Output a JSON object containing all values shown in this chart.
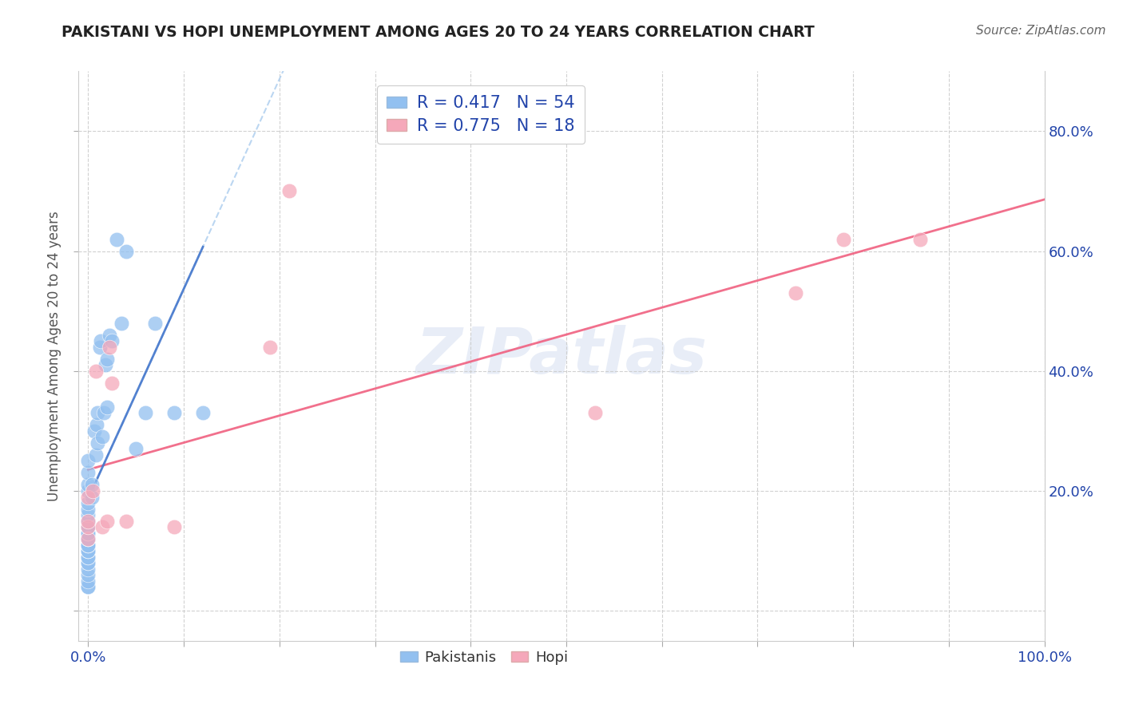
{
  "title": "PAKISTANI VS HOPI UNEMPLOYMENT AMONG AGES 20 TO 24 YEARS CORRELATION CHART",
  "source": "Source: ZipAtlas.com",
  "ylabel": "Unemployment Among Ages 20 to 24 years",
  "xlim": [
    -0.01,
    1.0
  ],
  "ylim": [
    -0.05,
    0.9
  ],
  "xticks": [
    0.0,
    0.1,
    0.2,
    0.3,
    0.4,
    0.5,
    0.6,
    0.7,
    0.8,
    0.9,
    1.0
  ],
  "yticks": [
    0.0,
    0.2,
    0.4,
    0.6,
    0.8
  ],
  "xtick_labels": [
    "0.0%",
    "",
    "",
    "",
    "",
    "",
    "",
    "",
    "",
    "",
    "100.0%"
  ],
  "ytick_labels": [
    "",
    "20.0%",
    "40.0%",
    "60.0%",
    "80.0%"
  ],
  "pakistani_color": "#92c0f0",
  "hopi_color": "#f5a8ba",
  "pakistani_line_color": "#4477cc",
  "pakistani_line_dash_color": "#aaccee",
  "hopi_line_color": "#f06080",
  "watermark": "ZIPatlas",
  "pakistani_x": [
    0.0,
    0.0,
    0.0,
    0.0,
    0.0,
    0.0,
    0.0,
    0.0,
    0.0,
    0.0,
    0.0,
    0.0,
    0.0,
    0.0,
    0.0,
    0.0,
    0.0,
    0.0,
    0.0,
    0.0,
    0.0,
    0.0,
    0.0,
    0.0,
    0.0,
    0.0,
    0.0,
    0.0,
    0.0,
    0.0,
    0.004,
    0.004,
    0.006,
    0.008,
    0.009,
    0.01,
    0.01,
    0.012,
    0.013,
    0.015,
    0.016,
    0.018,
    0.02,
    0.02,
    0.022,
    0.025,
    0.03,
    0.035,
    0.04,
    0.05,
    0.06,
    0.07,
    0.09,
    0.12
  ],
  "pakistani_y": [
    0.04,
    0.04,
    0.05,
    0.06,
    0.07,
    0.08,
    0.08,
    0.09,
    0.09,
    0.1,
    0.1,
    0.1,
    0.11,
    0.11,
    0.11,
    0.12,
    0.12,
    0.12,
    0.13,
    0.13,
    0.14,
    0.14,
    0.15,
    0.16,
    0.17,
    0.18,
    0.2,
    0.21,
    0.23,
    0.25,
    0.19,
    0.21,
    0.3,
    0.26,
    0.31,
    0.28,
    0.33,
    0.44,
    0.45,
    0.29,
    0.33,
    0.41,
    0.34,
    0.42,
    0.46,
    0.45,
    0.62,
    0.48,
    0.6,
    0.27,
    0.33,
    0.48,
    0.33,
    0.33
  ],
  "hopi_x": [
    0.0,
    0.0,
    0.0,
    0.0,
    0.005,
    0.008,
    0.015,
    0.02,
    0.022,
    0.025,
    0.04,
    0.09,
    0.19,
    0.21,
    0.53,
    0.74,
    0.79,
    0.87
  ],
  "hopi_y": [
    0.12,
    0.14,
    0.15,
    0.19,
    0.2,
    0.4,
    0.14,
    0.15,
    0.44,
    0.38,
    0.15,
    0.14,
    0.44,
    0.7,
    0.33,
    0.53,
    0.62,
    0.62
  ]
}
